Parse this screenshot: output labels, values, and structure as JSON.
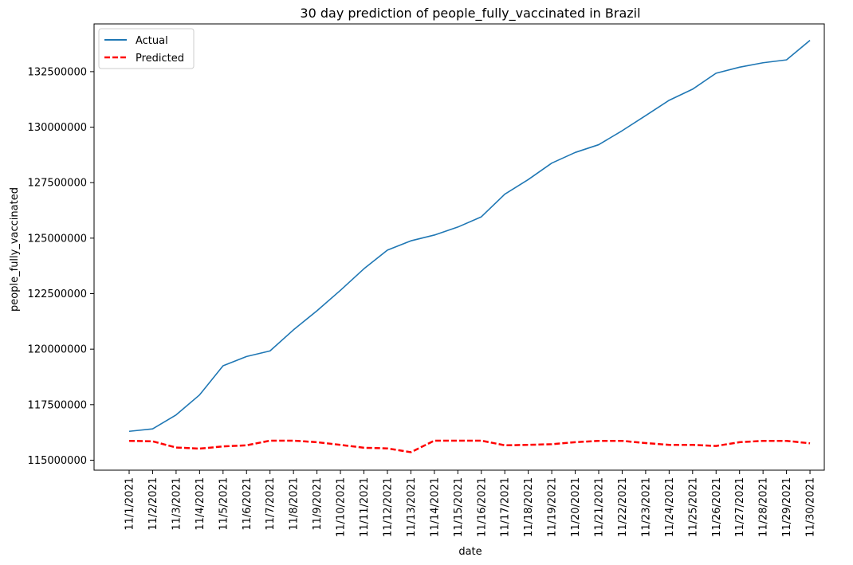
{
  "chart_data": {
    "type": "line",
    "title": "30 day prediction of people_fully_vaccinated in Brazil",
    "xlabel": "date",
    "ylabel": "people_fully_vaccinated",
    "categories": [
      "11/1/2021",
      "11/2/2021",
      "11/3/2021",
      "11/4/2021",
      "11/5/2021",
      "11/6/2021",
      "11/7/2021",
      "11/8/2021",
      "11/9/2021",
      "11/10/2021",
      "11/11/2021",
      "11/12/2021",
      "11/13/2021",
      "11/14/2021",
      "11/15/2021",
      "11/16/2021",
      "11/17/2021",
      "11/18/2021",
      "11/19/2021",
      "11/20/2021",
      "11/21/2021",
      "11/22/2021",
      "11/23/2021",
      "11/24/2021",
      "11/25/2021",
      "11/26/2021",
      "11/27/2021",
      "11/28/2021",
      "11/29/2021",
      "11/30/2021"
    ],
    "yticks": [
      115000000,
      117500000,
      120000000,
      122500000,
      125000000,
      127500000,
      130000000,
      132500000
    ],
    "ylim": [
      114550000,
      134650000
    ],
    "grid": false,
    "legend_position": "top-left",
    "series": [
      {
        "name": "Actual",
        "color": "#1f77b4",
        "style": "solid",
        "values": [
          116300000,
          116410000,
          117040000,
          117940000,
          119250000,
          119670000,
          119920000,
          120870000,
          121730000,
          122650000,
          123620000,
          124460000,
          124880000,
          125140000,
          125500000,
          125960000,
          126980000,
          127640000,
          128380000,
          128860000,
          129210000,
          129840000,
          130520000,
          131210000,
          131710000,
          132430000,
          132700000,
          132900000,
          133030000,
          133910000
        ]
      },
      {
        "name": "Predicted",
        "color": "#ff0000",
        "style": "dashed",
        "values": [
          115870000,
          115850000,
          115570000,
          115520000,
          115620000,
          115670000,
          115880000,
          115880000,
          115810000,
          115690000,
          115560000,
          115530000,
          115360000,
          115880000,
          115880000,
          115880000,
          115670000,
          115690000,
          115720000,
          115810000,
          115870000,
          115870000,
          115770000,
          115690000,
          115690000,
          115640000,
          115810000,
          115870000,
          115870000,
          115760000
        ]
      }
    ]
  }
}
